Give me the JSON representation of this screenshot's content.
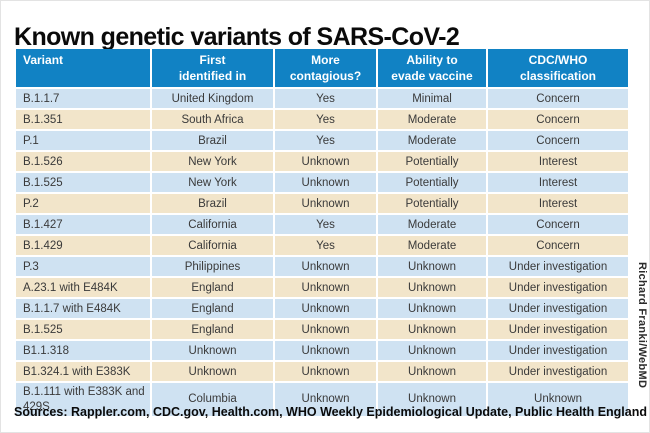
{
  "title": "Known genetic variants of SARS-CoV-2",
  "credit": "Richard Franki/WebMD",
  "sources": {
    "label": "Sources:",
    "text": " Rappler.com, CDC.gov, Health.com, WHO Weekly Epidemiological Update, Public Health England"
  },
  "colors": {
    "header_bg": "#1182c4",
    "row_blue": "#cfe2f2",
    "row_tan": "#f2e5ca",
    "header_text": "#ffffff",
    "body_text": "#3a3a3a"
  },
  "chart_data": {
    "type": "table",
    "title": "Known genetic variants of SARS-CoV-2",
    "columns": [
      "Variant",
      "First identified in",
      "More contagious?",
      "Ability to evade vaccine",
      "CDC/WHO classification"
    ],
    "header_lines": [
      [
        "Variant"
      ],
      [
        "First",
        "identified in"
      ],
      [
        "More",
        "contagious?"
      ],
      [
        "Ability to",
        "evade vaccine"
      ],
      [
        "CDC/WHO",
        "classification"
      ]
    ],
    "rows": [
      [
        "B.1.1.7",
        "United Kingdom",
        "Yes",
        "Minimal",
        "Concern"
      ],
      [
        "B.1.351",
        "South Africa",
        "Yes",
        "Moderate",
        "Concern"
      ],
      [
        "P.1",
        "Brazil",
        "Yes",
        "Moderate",
        "Concern"
      ],
      [
        "B.1.526",
        "New York",
        "Unknown",
        "Potentially",
        "Interest"
      ],
      [
        "B.1.525",
        "New York",
        "Unknown",
        "Potentially",
        "Interest"
      ],
      [
        "P.2",
        "Brazil",
        "Unknown",
        "Potentially",
        "Interest"
      ],
      [
        "B.1.427",
        "California",
        "Yes",
        "Moderate",
        "Concern"
      ],
      [
        "B.1.429",
        "California",
        "Yes",
        "Moderate",
        "Concern"
      ],
      [
        "P.3",
        "Philippines",
        "Unknown",
        "Unknown",
        "Under investigation"
      ],
      [
        "A.23.1 with E484K",
        "England",
        "Unknown",
        "Unknown",
        "Under investigation"
      ],
      [
        "B.1.1.7 with E484K",
        "England",
        "Unknown",
        "Unknown",
        "Under investigation"
      ],
      [
        "B.1.525",
        "England",
        "Unknown",
        "Unknown",
        "Under investigation"
      ],
      [
        "B1.1.318",
        "Unknown",
        "Unknown",
        "Unknown",
        "Under investigation"
      ],
      [
        "B1.324.1 with E383K",
        "Unknown",
        "Unknown",
        "Unknown",
        "Under investigation"
      ],
      [
        "B.1.111 with E383K and 429S",
        "Columbia",
        "Unknown",
        "Unknown",
        "Unknown"
      ]
    ],
    "layout_hints": {
      "first_column_align": "left",
      "other_columns_align": "center",
      "row_stripe_pattern": [
        "blue",
        "tan"
      ],
      "grid": "white gaps between cells"
    }
  }
}
